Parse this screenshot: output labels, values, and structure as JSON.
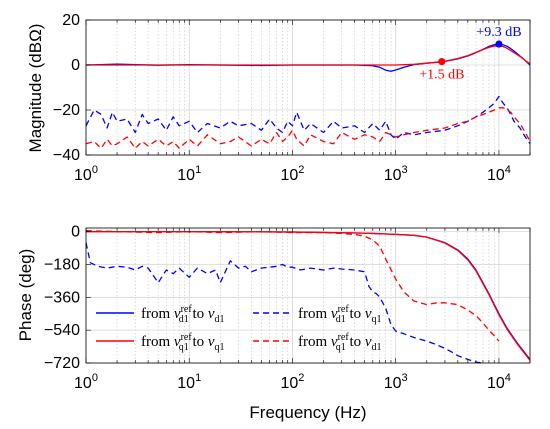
{
  "chart_data": [
    {
      "type": "line",
      "x_scale": "log",
      "xlim": [
        1,
        20000
      ],
      "ylim": [
        -40,
        20
      ],
      "ylabel": "Magnitude (dBΩ)",
      "xticks": [
        1,
        10,
        100,
        1000,
        10000
      ],
      "yticks": [
        20,
        0,
        -20,
        -40
      ],
      "grid": true,
      "series": [
        {
          "key": "dd",
          "color": "#0000ff",
          "dash": "solid",
          "x": [
            1,
            2,
            5,
            10,
            50,
            100,
            200,
            400,
            600,
            700,
            800,
            900,
            1000,
            1200,
            1500,
            2000,
            2500,
            3000,
            4000,
            5000,
            6000,
            7000,
            8000,
            9000,
            10000,
            11000,
            12000,
            13000,
            14000,
            16000,
            18000,
            20000
          ],
          "y": [
            0,
            0.4,
            -0.1,
            0.2,
            -0.2,
            0,
            0,
            0,
            -0.3,
            -1,
            -2.3,
            -2.8,
            -2.2,
            -1,
            0.2,
            0.8,
            1.2,
            1.6,
            2.7,
            4,
            5.5,
            6.9,
            8.2,
            9,
            9.3,
            9,
            8.3,
            7.3,
            6.2,
            4,
            2,
            0
          ]
        },
        {
          "key": "qq",
          "color": "#ff0000",
          "dash": "solid",
          "x": [
            1,
            10,
            100,
            500,
            1000,
            1500,
            2000,
            2500,
            2800,
            3000,
            4000,
            5000,
            6000,
            7000,
            8000,
            9000,
            10000,
            11000,
            12000,
            14000,
            16000,
            18000,
            20000
          ],
          "y": [
            0,
            0,
            0,
            0,
            0,
            0.3,
            0.8,
            1.3,
            1.5,
            1.7,
            2.9,
            4.2,
            5.6,
            6.8,
            7.8,
            8.4,
            8.5,
            8.2,
            7.4,
            5.5,
            3.8,
            2,
            0.5
          ]
        },
        {
          "key": "dq",
          "color": "#0000ff",
          "dash": "dashed",
          "x": [
            1,
            1.2,
            1.4,
            1.6,
            1.8,
            2,
            2.5,
            3,
            3.5,
            4,
            5,
            6,
            7,
            8,
            10,
            12,
            15,
            20,
            25,
            30,
            40,
            50,
            60,
            70,
            80,
            90,
            100,
            110,
            130,
            150,
            200,
            250,
            300,
            400,
            500,
            600,
            700,
            800,
            900,
            1000,
            1200,
            1500,
            2000,
            3000,
            4000,
            5000,
            6000,
            7000,
            8000,
            9000,
            10000,
            11000,
            12000,
            13000,
            14000,
            16000,
            18000,
            20000
          ],
          "y": [
            -27,
            -20,
            -22,
            -28,
            -21,
            -25,
            -24,
            -30,
            -22,
            -26,
            -24,
            -29,
            -23,
            -27,
            -25,
            -30,
            -26,
            -28,
            -25,
            -27,
            -26,
            -29,
            -24,
            -28,
            -30,
            -25,
            -27,
            -21,
            -29,
            -26,
            -30,
            -25,
            -28,
            -27,
            -30,
            -26,
            -29,
            -25,
            -31,
            -33,
            -30,
            -31,
            -30,
            -29,
            -27,
            -25,
            -23,
            -21,
            -19,
            -17,
            -14,
            -17,
            -19,
            -22,
            -25,
            -28,
            -32,
            -35
          ]
        },
        {
          "key": "qd",
          "color": "#ff0000",
          "dash": "dashed",
          "x": [
            1,
            1.2,
            1.4,
            1.6,
            1.8,
            2,
            2.5,
            3,
            3.5,
            4,
            5,
            6,
            7,
            8,
            10,
            12,
            15,
            20,
            25,
            30,
            40,
            50,
            60,
            70,
            80,
            90,
            100,
            110,
            130,
            150,
            200,
            250,
            300,
            400,
            500,
            600,
            700,
            800,
            900,
            1000,
            1200,
            1500,
            2000,
            3000,
            4000,
            5000,
            6000,
            7000,
            8000,
            9000,
            10000,
            11000,
            12000,
            13000,
            14000,
            16000,
            18000,
            20000
          ],
          "y": [
            -35,
            -34,
            -37,
            -33,
            -36,
            -35,
            -32,
            -37,
            -34,
            -36,
            -33,
            -36,
            -34,
            -37,
            -33,
            -36,
            -31,
            -35,
            -34,
            -32,
            -36,
            -33,
            -35,
            -30,
            -34,
            -32,
            -29,
            -33,
            -36,
            -31,
            -34,
            -35,
            -30,
            -33,
            -31,
            -32,
            -34,
            -30,
            -31,
            -32,
            -31,
            -30,
            -29,
            -28,
            -26,
            -25,
            -23,
            -22,
            -21,
            -20,
            -19,
            -19,
            -20,
            -21,
            -23,
            -26,
            -30,
            -34
          ]
        }
      ],
      "annotations": [
        {
          "text": "+9.3 dB",
          "x": 10000,
          "y": 9.3,
          "color": "#0000ff"
        },
        {
          "text": "+1.5 dB",
          "x": 2800,
          "y": 1.5,
          "color": "#ff0000"
        }
      ]
    },
    {
      "type": "line",
      "x_scale": "log",
      "xlim": [
        1,
        20000
      ],
      "ylim": [
        -720,
        20
      ],
      "xlabel": "Frequency (Hz)",
      "ylabel": "Phase (deg)",
      "xticks": [
        1,
        10,
        100,
        1000,
        10000
      ],
      "yticks": [
        0,
        -180,
        -360,
        -540,
        -720
      ],
      "grid": true,
      "series": [
        {
          "key": "dd",
          "color": "#0000ff",
          "dash": "solid",
          "x": [
            1,
            10,
            100,
            500,
            1000,
            1500,
            2000,
            3000,
            4000,
            5000,
            6000,
            7000,
            8000,
            10000,
            12000,
            15000,
            20000
          ],
          "y": [
            0,
            0,
            -2,
            -8,
            -15,
            -20,
            -30,
            -60,
            -100,
            -150,
            -210,
            -280,
            -340,
            -450,
            -530,
            -610,
            -700
          ]
        },
        {
          "key": "qq",
          "color": "#ff0000",
          "dash": "solid",
          "x": [
            1,
            10,
            100,
            500,
            1000,
            1500,
            2000,
            3000,
            4000,
            5000,
            6000,
            7000,
            8000,
            10000,
            12000,
            15000,
            20000
          ],
          "y": [
            0,
            0,
            -2,
            -8,
            -15,
            -20,
            -30,
            -62,
            -103,
            -155,
            -215,
            -285,
            -345,
            -455,
            -535,
            -615,
            -705
          ]
        },
        {
          "key": "dq",
          "color": "#0000ff",
          "dash": "dashed",
          "x": [
            1,
            1.1,
            1.3,
            1.6,
            2,
            2.5,
            3,
            3.5,
            4,
            5,
            6,
            7,
            8,
            10,
            12,
            15,
            18,
            20,
            25,
            30,
            35,
            40,
            50,
            60,
            70,
            80,
            90,
            100,
            120,
            150,
            200,
            250,
            300,
            400,
            500,
            550,
            600,
            650,
            700,
            750,
            800,
            900,
            1000,
            1200,
            1500,
            2000,
            2500,
            3000,
            3500,
            4000,
            5000,
            6000,
            7000
          ],
          "y": [
            -60,
            -170,
            -190,
            -200,
            -190,
            -195,
            -210,
            -190,
            -200,
            -280,
            -210,
            -230,
            -200,
            -250,
            -200,
            -230,
            -210,
            -280,
            -160,
            -200,
            -190,
            -220,
            -200,
            -195,
            -190,
            -180,
            -195,
            -195,
            -210,
            -200,
            -210,
            -200,
            -205,
            -210,
            -220,
            -300,
            -330,
            -340,
            -360,
            -390,
            -420,
            -510,
            -545,
            -560,
            -580,
            -600,
            -620,
            -640,
            -660,
            -680,
            -700,
            -715,
            -720
          ]
        },
        {
          "key": "qd",
          "color": "#ff0000",
          "dash": "dashed",
          "x": [
            1,
            2,
            5,
            10,
            20,
            50,
            100,
            200,
            300,
            400,
            500,
            600,
            700,
            800,
            1000,
            1200,
            1500,
            2000,
            2500,
            3000,
            4000,
            5000,
            6000,
            7000,
            8000,
            9000,
            10000
          ],
          "y": [
            5,
            0,
            -5,
            0,
            -5,
            0,
            -5,
            -5,
            -10,
            -15,
            -25,
            -45,
            -80,
            -150,
            -260,
            -330,
            -380,
            -400,
            -390,
            -390,
            -400,
            -430,
            -460,
            -500,
            -540,
            -570,
            -600
          ]
        }
      ],
      "legend": [
        {
          "key": "dd",
          "color": "#0000ff",
          "dash": "solid",
          "pre": "from ",
          "v1": "v",
          "sup": "ref",
          "sub1": "d1",
          "mid": "  to ",
          "v2": "v",
          "sub2": "d1"
        },
        {
          "key": "dq",
          "color": "#0000ff",
          "dash": "dashed",
          "pre": "from ",
          "v1": "v",
          "sup": "ref",
          "sub1": "d1",
          "mid": "  to ",
          "v2": "v",
          "sub2": "q1"
        },
        {
          "key": "qq",
          "color": "#ff0000",
          "dash": "solid",
          "pre": "from ",
          "v1": "v",
          "sup": "ref",
          "sub1": "q1",
          "mid": "  to ",
          "v2": "v",
          "sub2": "q1"
        },
        {
          "key": "qd",
          "color": "#ff0000",
          "dash": "dashed",
          "pre": "from ",
          "v1": "v",
          "sup": "ref",
          "sub1": "q1",
          "mid": "  to ",
          "v2": "v",
          "sub2": "d1"
        }
      ],
      "legend_position": "bottom-left"
    }
  ]
}
